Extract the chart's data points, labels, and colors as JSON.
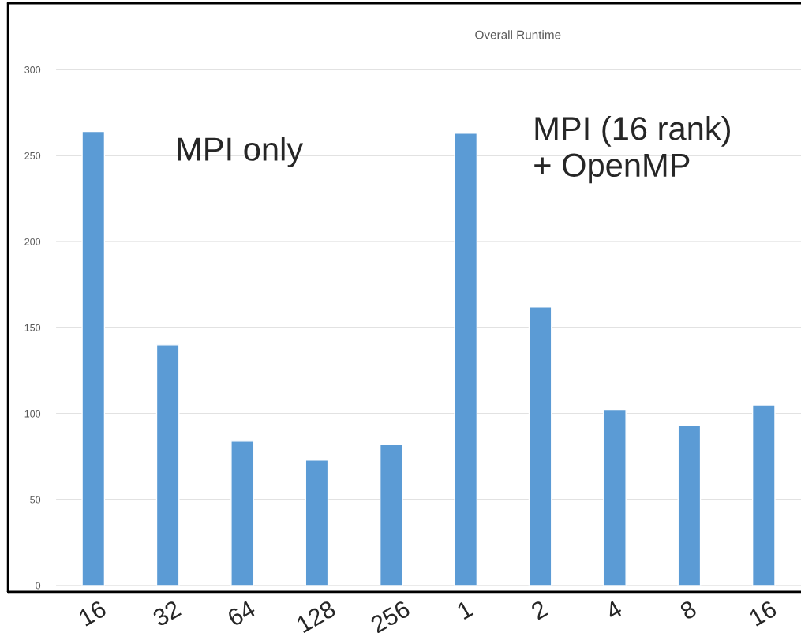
{
  "chart_data": {
    "type": "bar",
    "title": "Overall Runtime",
    "categories": [
      "16",
      "32",
      "64",
      "128",
      "256",
      "1",
      "2",
      "4",
      "8",
      "16"
    ],
    "values": [
      264,
      140,
      84,
      73,
      82,
      263,
      162,
      102,
      93,
      105
    ],
    "color": "#5b9bd5",
    "ylim": [
      0,
      300
    ],
    "yticks": [
      0,
      50,
      100,
      150,
      200,
      250,
      300
    ],
    "grid": "y",
    "annotations": [
      "MPI only",
      "MPI (16 rank)\n+ OpenMP"
    ]
  }
}
